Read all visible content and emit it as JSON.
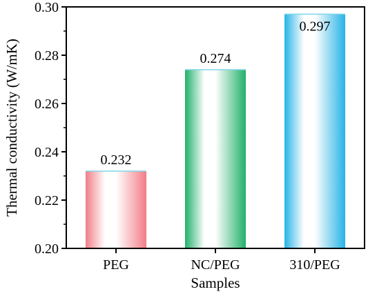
{
  "chart_data": {
    "type": "bar",
    "title": "",
    "xlabel": "Samples",
    "ylabel": "Thermal conductivity (W/mK)",
    "categories": [
      "PEG",
      "NC/PEG",
      "310/PEG"
    ],
    "values": [
      0.232,
      0.274,
      0.297
    ],
    "value_labels": [
      "0.232",
      "0.274",
      "0.297"
    ],
    "ylim": [
      0.2,
      0.3
    ],
    "yticks": [
      "0.20",
      "0.22",
      "0.24",
      "0.26",
      "0.28",
      "0.30"
    ],
    "grid": false,
    "legend": "none",
    "bar_colors": [
      "#f27d86",
      "#21b06a",
      "#26b3e6"
    ]
  }
}
